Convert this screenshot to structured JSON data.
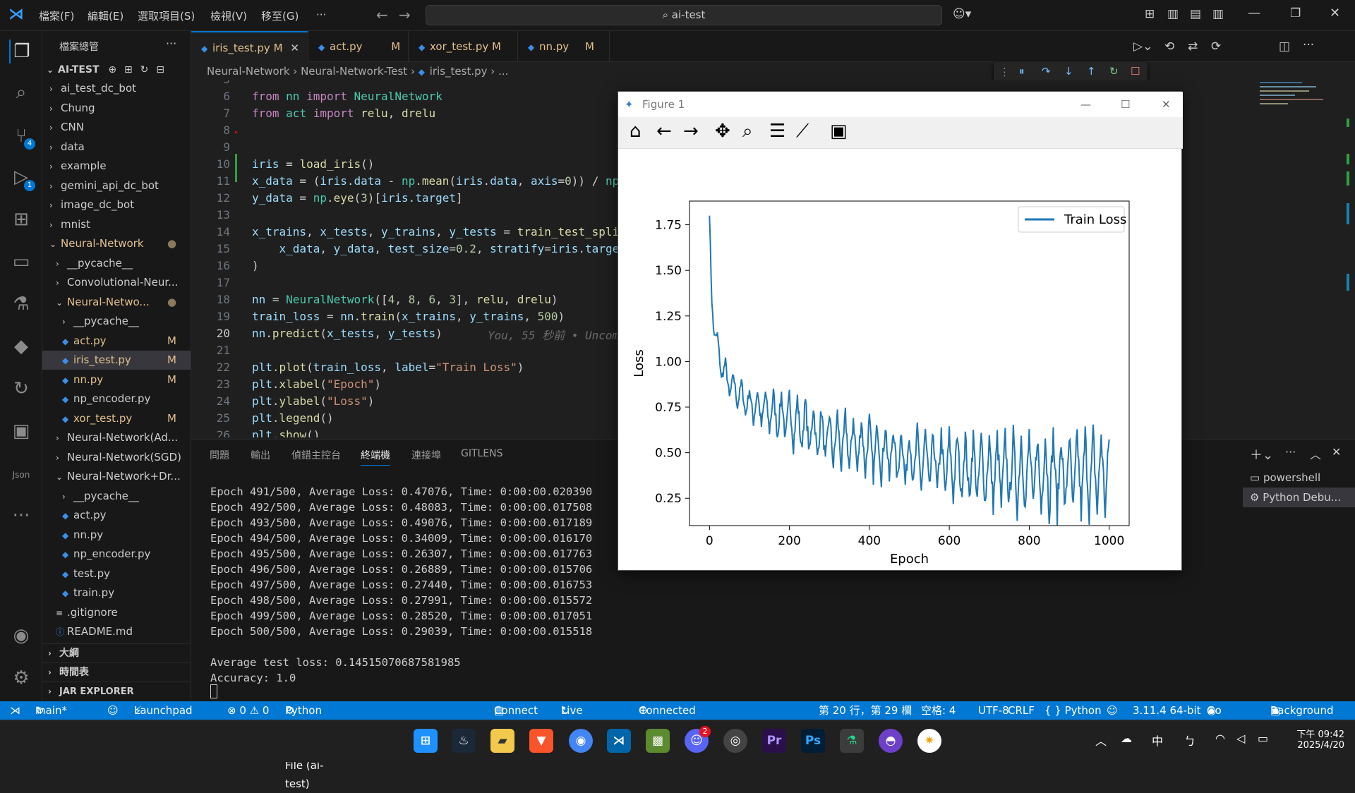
{
  "titlebar": {
    "menus": [
      "檔案(F)",
      "編輯(E)",
      "選取項目(S)",
      "檢視(V)",
      "移至(G)",
      "···"
    ],
    "search": "ai-test"
  },
  "activity": {
    "scm_badge": "4",
    "debug_badge": "1"
  },
  "sidebar": {
    "header": "檔案總管",
    "root": "AI-TEST",
    "tree": [
      {
        "label": "ai_test_dc_bot",
        "indent": 0,
        "kind": "folder"
      },
      {
        "label": "Chung",
        "indent": 0,
        "kind": "folder"
      },
      {
        "label": "CNN",
        "indent": 0,
        "kind": "folder"
      },
      {
        "label": "data",
        "indent": 0,
        "kind": "folder"
      },
      {
        "label": "example",
        "indent": 0,
        "kind": "folder"
      },
      {
        "label": "gemini_api_dc_bot",
        "indent": 0,
        "kind": "folder"
      },
      {
        "label": "image_dc_bot",
        "indent": 0,
        "kind": "folder"
      },
      {
        "label": "mnist",
        "indent": 0,
        "kind": "folder"
      },
      {
        "label": "Neural-Network",
        "indent": 0,
        "kind": "open",
        "mark": "●"
      },
      {
        "label": "__pycache__",
        "indent": 1,
        "kind": "folder"
      },
      {
        "label": "Convolutional-Neur...",
        "indent": 1,
        "kind": "folder"
      },
      {
        "label": "Neural-Netwo...",
        "indent": 1,
        "kind": "open",
        "mark": "●"
      },
      {
        "label": "__pycache__",
        "indent": 2,
        "kind": "folder"
      },
      {
        "label": "act.py",
        "indent": 2,
        "kind": "py",
        "mark": "M"
      },
      {
        "label": "iris_test.py",
        "indent": 2,
        "kind": "py",
        "mark": "M",
        "selected": true
      },
      {
        "label": "nn.py",
        "indent": 2,
        "kind": "py",
        "mark": "M"
      },
      {
        "label": "np_encoder.py",
        "indent": 2,
        "kind": "py"
      },
      {
        "label": "xor_test.py",
        "indent": 2,
        "kind": "py",
        "mark": "M"
      },
      {
        "label": "Neural-Network(Ad...",
        "indent": 1,
        "kind": "folder"
      },
      {
        "label": "Neural-Network(SGD)",
        "indent": 1,
        "kind": "folder"
      },
      {
        "label": "Neural-Network+Dr...",
        "indent": 1,
        "kind": "open"
      },
      {
        "label": "__pycache__",
        "indent": 2,
        "kind": "folder"
      },
      {
        "label": "act.py",
        "indent": 2,
        "kind": "py"
      },
      {
        "label": "nn.py",
        "indent": 2,
        "kind": "py"
      },
      {
        "label": "np_encoder.py",
        "indent": 2,
        "kind": "py"
      },
      {
        "label": "test.py",
        "indent": 2,
        "kind": "py"
      },
      {
        "label": "train.py",
        "indent": 2,
        "kind": "py"
      },
      {
        "label": ".gitignore",
        "indent": 1,
        "kind": "file"
      },
      {
        "label": "README.md",
        "indent": 1,
        "kind": "info"
      }
    ],
    "sections": [
      "大綱",
      "時間表",
      "JAR EXPLORER"
    ]
  },
  "tabs": [
    {
      "label": "iris_test.py",
      "mark": "M",
      "active": true
    },
    {
      "label": "act.py",
      "mark": "M"
    },
    {
      "label": "xor_test.py",
      "mark": "M"
    },
    {
      "label": "nn.py",
      "mark": "M"
    }
  ],
  "breadcrumb": [
    "Neural-Network",
    "Neural-Network-Test",
    "iris_test.py",
    "..."
  ],
  "editor": {
    "lines": [
      {
        "n": "5",
        "html": ""
      },
      {
        "n": "6",
        "html": "<span class=kw>from</span> <span class=cls>nn</span> <span class=kw>import</span> <span class=cls>NeuralNetwork</span>"
      },
      {
        "n": "7",
        "html": "<span class=kw>from</span> <span class=cls>act</span> <span class=kw>import</span> <span class=fn>relu</span>, <span class=fn>drelu</span>"
      },
      {
        "n": "8",
        "html": ""
      },
      {
        "n": "9",
        "html": ""
      },
      {
        "n": "10",
        "html": "<span class=var>iris</span> = <span class=fn>load_iris</span>()"
      },
      {
        "n": "11",
        "html": "<span class=var>x_data</span> = (<span class=var>iris</span>.<span class=var>data</span> - <span class=cls>np</span>.<span class=fn>mean</span>(<span class=var>iris</span>.<span class=var>data</span>, <span class=var>axis</span>=<span class=num>0</span>)) / <span class=cls>np</span>"
      },
      {
        "n": "12",
        "html": "<span class=var>y_data</span> = <span class=cls>np</span>.<span class=fn>eye</span>(<span class=num>3</span>)[<span class=var>iris</span>.<span class=var>target</span>]"
      },
      {
        "n": "13",
        "html": ""
      },
      {
        "n": "14",
        "html": "<span class=var>x_trains</span>, <span class=var>x_tests</span>, <span class=var>y_trains</span>, <span class=var>y_tests</span> = <span class=fn>train_test_spli</span>"
      },
      {
        "n": "15",
        "html": "    <span class=var>x_data</span>, <span class=var>y_data</span>, <span class=var>test_size</span>=<span class=num>0.2</span>, <span class=var>stratify</span>=<span class=var>iris</span>.<span class=var>targe</span>"
      },
      {
        "n": "16",
        "html": ")"
      },
      {
        "n": "17",
        "html": ""
      },
      {
        "n": "18",
        "html": "<span class=var>nn</span> = <span class=cls>NeuralNetwork</span>([<span class=num>4</span>, <span class=num>8</span>, <span class=num>6</span>, <span class=num>3</span>], <span class=fn>relu</span>, <span class=fn>drelu</span>)"
      },
      {
        "n": "19",
        "html": "<span class=var>train_loss</span> = <span class=var>nn</span>.<span class=fn>train</span>(<span class=var>x_trains</span>, <span class=var>y_trains</span>, <span class=num>500</span>)"
      },
      {
        "n": "20",
        "html": "<span class=var>nn</span>.<span class=fn>predict</span>(<span class=var>x_tests</span>, <span class=var>y_tests</span>)"
      },
      {
        "n": "21",
        "html": ""
      },
      {
        "n": "22",
        "html": "<span class=var>plt</span>.<span class=fn>plot</span>(<span class=var>train_loss</span>, <span class=var>label</span>=<span class=str>\"Train Loss\"</span>)"
      },
      {
        "n": "23",
        "html": "<span class=var>plt</span>.<span class=fn>xlabel</span>(<span class=str>\"Epoch\"</span>)"
      },
      {
        "n": "24",
        "html": "<span class=var>plt</span>.<span class=fn>ylabel</span>(<span class=str>\"Loss\"</span>)"
      },
      {
        "n": "25",
        "html": "<span class=var>plt</span>.<span class=fn>legend</span>()"
      },
      {
        "n": "26",
        "html": "<span class=var>plt</span>.<span class=fn>show</span>()"
      }
    ],
    "blame": "You, 55 秒前 • Uncom"
  },
  "panel": {
    "tabs": [
      "問題",
      "輸出",
      "偵錯主控台",
      "終端機",
      "連接埠",
      "GITLENS"
    ],
    "terminals": [
      "powershell",
      "Python Debu..."
    ],
    "output": [
      "Epoch 491/500, Average Loss: 0.47076, Time: 0:00:00.020390",
      "Epoch 492/500, Average Loss: 0.48083, Time: 0:00:00.017508",
      "Epoch 493/500, Average Loss: 0.49076, Time: 0:00:00.017189",
      "Epoch 494/500, Average Loss: 0.34009, Time: 0:00:00.016170",
      "Epoch 495/500, Average Loss: 0.26307, Time: 0:00:00.017763",
      "Epoch 496/500, Average Loss: 0.26889, Time: 0:00:00.015706",
      "Epoch 497/500, Average Loss: 0.27440, Time: 0:00:00.016753",
      "Epoch 498/500, Average Loss: 0.27991, Time: 0:00:00.015572",
      "Epoch 499/500, Average Loss: 0.28520, Time: 0:00:00.017051",
      "Epoch 500/500, Average Loss: 0.29039, Time: 0:00:00.015518",
      "",
      "Average test loss: 0.14515070687581985",
      "Accuracy: 1.0"
    ]
  },
  "statusbar": {
    "branch": "main*",
    "launchpad": "Launchpad",
    "problems": "⊗ 0 ⚠ 0",
    "debugger": "Python Debugger: Python File (ai-test)",
    "connect": "Connect",
    "liveshare": "Live Share",
    "discord": "Connected to Discord",
    "position": "第 20 行，第 29 欄",
    "spaces": "空格: 4",
    "encoding": "UTF-8",
    "eol": "CRLF",
    "language": "{ } Python",
    "version": "3.11.4 64-bit",
    "golive": "Go Live",
    "background": "Background"
  },
  "taskbar": {
    "time": "下午 09:42",
    "date": "2025/4/20",
    "ime": "中",
    "discord_badge": "2"
  },
  "figure": {
    "title": "Figure 1"
  },
  "chart_data": {
    "type": "line",
    "title": "",
    "xlabel": "Epoch",
    "ylabel": "Loss",
    "xlim": [
      -50,
      1050
    ],
    "ylim": [
      0.1,
      1.88
    ],
    "xticks": [
      0,
      200,
      400,
      600,
      800,
      1000
    ],
    "yticks": [
      0.25,
      0.5,
      0.75,
      1.0,
      1.25,
      1.5,
      1.75
    ],
    "ytick_labels": [
      "0.25",
      "0.50",
      "0.75",
      "1.00",
      "1.25",
      "1.50",
      "1.75"
    ],
    "legend": "top-right",
    "color": "#1f77b4",
    "series": [
      {
        "name": "Train Loss",
        "envelope_x": [
          0,
          5,
          15,
          30,
          50,
          100,
          150,
          200,
          300,
          400,
          500,
          600,
          700,
          800,
          900,
          1000
        ],
        "upper": [
          1.8,
          1.45,
          1.2,
          1.05,
          0.95,
          0.85,
          0.83,
          0.82,
          0.72,
          0.68,
          0.62,
          0.6,
          0.58,
          0.6,
          0.6,
          0.6
        ],
        "lower": [
          1.8,
          1.3,
          1.05,
          0.9,
          0.8,
          0.68,
          0.62,
          0.55,
          0.43,
          0.38,
          0.32,
          0.26,
          0.22,
          0.18,
          0.17,
          0.18
        ]
      }
    ]
  }
}
